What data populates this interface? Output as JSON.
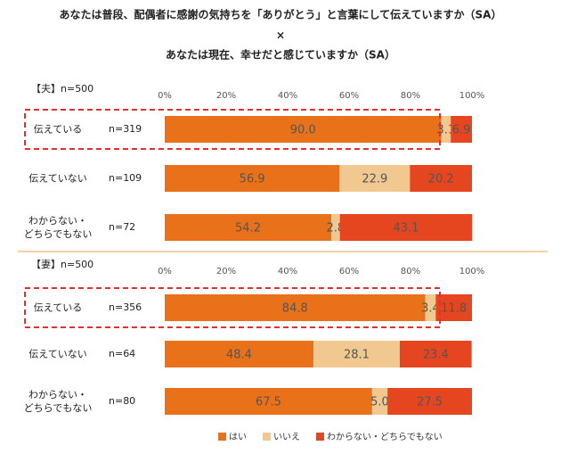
{
  "title_lines": [
    "あなたは普段、配偶者に感謝の気持ちを「ありがとう」と言葉にして伝えていますか（SA）",
    "×",
    "あなたは現在、幸せだと感じていますか（SA）"
  ],
  "chart_data": [
    {
      "type": "bar",
      "orientation": "horizontal",
      "stacked": true,
      "group_label": "【夫】n=500",
      "categories": [
        "伝えている",
        "伝えていない",
        "わからない・\nどちらでもない"
      ],
      "n_labels": [
        "n=319",
        "n=109",
        "n=72"
      ],
      "xlim": [
        0,
        100
      ],
      "xticks": [
        {
          "value": 0,
          "label": "0%"
        },
        {
          "value": 20,
          "label": "20%"
        },
        {
          "value": 40,
          "label": "40%"
        },
        {
          "value": 60,
          "label": "60%"
        },
        {
          "value": 80,
          "label": "80%"
        },
        {
          "value": 100,
          "label": "100%"
        }
      ],
      "series": [
        {
          "name": "はい",
          "color": "#e8711a",
          "values": [
            90.0,
            56.9,
            54.2
          ],
          "value_labels": [
            "90.0",
            "56.9",
            "54.2"
          ]
        },
        {
          "name": "いいえ",
          "color": "#f0c890",
          "values": [
            3.1,
            22.9,
            2.8
          ],
          "value_labels": [
            "3.1",
            "22.9",
            "2.8"
          ]
        },
        {
          "name": "わからない・どちらでもない",
          "color": "#e5461f",
          "values": [
            6.9,
            20.2,
            43.1
          ],
          "value_labels": [
            "6.9",
            "20.2",
            "43.1"
          ]
        }
      ]
    },
    {
      "type": "bar",
      "orientation": "horizontal",
      "stacked": true,
      "group_label": "【妻】n=500",
      "categories": [
        "伝えている",
        "伝えていない",
        "わからない・\nどちらでもない"
      ],
      "n_labels": [
        "n=356",
        "n=64",
        "n=80"
      ],
      "xlim": [
        0,
        100
      ],
      "xticks": [
        {
          "value": 0,
          "label": "0%"
        },
        {
          "value": 20,
          "label": "20%"
        },
        {
          "value": 40,
          "label": "40%"
        },
        {
          "value": 60,
          "label": "60%"
        },
        {
          "value": 80,
          "label": "80%"
        },
        {
          "value": 100,
          "label": "100%"
        }
      ],
      "series": [
        {
          "color": "#e8711a",
          "values": [
            84.8,
            48.4,
            67.5
          ],
          "value_labels": [
            "84.8",
            "48.4",
            "67.5"
          ]
        },
        {
          "color": "#f0c890",
          "values": [
            3.4,
            28.1,
            5.0
          ],
          "value_labels": [
            "3.4",
            "28.1",
            "5.0"
          ]
        },
        {
          "color": "#e5461f",
          "values": [
            11.8,
            23.4,
            27.5
          ],
          "value_labels": [
            "11.8",
            "23.4",
            "27.5"
          ]
        }
      ]
    }
  ]
}
